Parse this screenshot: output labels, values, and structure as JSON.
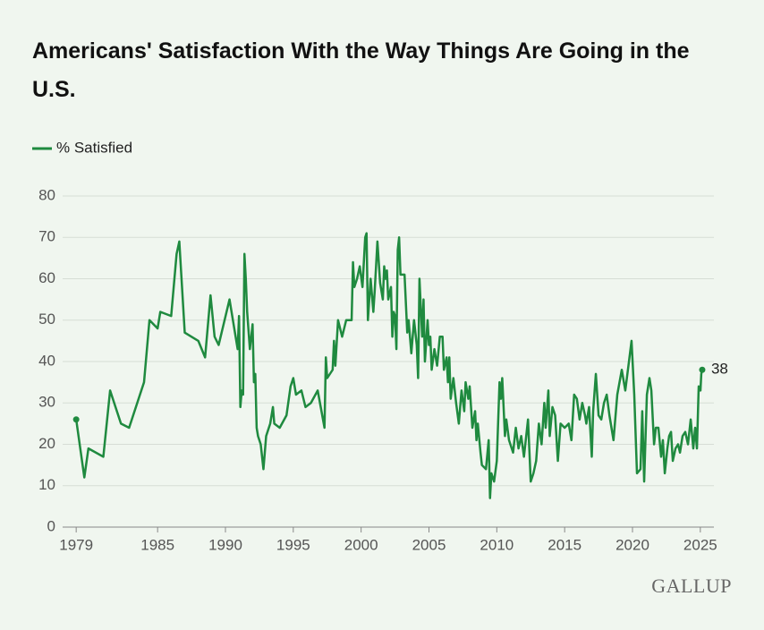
{
  "chart_data": {
    "type": "line",
    "title": "Americans' Satisfaction With the Way Things Are Going in the U.S.",
    "source": "GALLUP",
    "xlim": [
      1978,
      2026
    ],
    "xticks": [
      1979,
      1985,
      1990,
      1995,
      2000,
      2005,
      2010,
      2015,
      2020,
      2025
    ],
    "ylim": [
      0,
      80
    ],
    "yticks": [
      0,
      10,
      20,
      30,
      40,
      50,
      60,
      70,
      80
    ],
    "grid": true,
    "x": [
      1979.0,
      1979.6,
      1979.9,
      1981.0,
      1981.5,
      1982.3,
      1982.9,
      1984.0,
      1984.4,
      1985.0,
      1985.2,
      1986.0,
      1986.4,
      1986.6,
      1987.0,
      1988.0,
      1988.5,
      1988.9,
      1989.2,
      1989.5,
      1990.3,
      1990.9,
      1991.0,
      1991.1,
      1991.2,
      1991.3,
      1991.4,
      1991.5,
      1991.6,
      1991.8,
      1992.0,
      1992.1,
      1992.2,
      1992.3,
      1992.4,
      1992.6,
      1992.8,
      1993.0,
      1993.3,
      1993.5,
      1993.6,
      1994.0,
      1994.5,
      1994.8,
      1995.0,
      1995.2,
      1995.6,
      1995.9,
      1996.3,
      1996.8,
      1997.3,
      1997.4,
      1997.5,
      1997.9,
      1998.0,
      1998.1,
      1998.3,
      1998.6,
      1998.9,
      1999.3,
      1999.4,
      1999.5,
      1999.7,
      1999.9,
      2000.1,
      2000.3,
      2000.4,
      2000.5,
      2000.7,
      2000.9,
      2001.0,
      2001.2,
      2001.4,
      2001.6,
      2001.7,
      2001.8,
      2001.9,
      2002.0,
      2002.2,
      2002.3,
      2002.4,
      2002.5,
      2002.6,
      2002.7,
      2002.8,
      2002.9,
      2003.2,
      2003.4,
      2003.5,
      2003.7,
      2003.9,
      2004.1,
      2004.2,
      2004.3,
      2004.5,
      2004.6,
      2004.7,
      2004.9,
      2005.0,
      2005.1,
      2005.2,
      2005.4,
      2005.6,
      2005.8,
      2006.0,
      2006.1,
      2006.3,
      2006.4,
      2006.5,
      2006.6,
      2006.8,
      2007.0,
      2007.2,
      2007.4,
      2007.6,
      2007.7,
      2007.9,
      2008.0,
      2008.2,
      2008.4,
      2008.5,
      2008.6,
      2008.8,
      2008.9,
      2009.2,
      2009.4,
      2009.5,
      2009.6,
      2009.8,
      2010.0,
      2010.2,
      2010.3,
      2010.4,
      2010.6,
      2010.7,
      2010.9,
      2011.2,
      2011.4,
      2011.6,
      2011.8,
      2012.0,
      2012.3,
      2012.5,
      2012.7,
      2012.9,
      2013.1,
      2013.3,
      2013.5,
      2013.6,
      2013.8,
      2013.9,
      2014.1,
      2014.3,
      2014.5,
      2014.7,
      2015.0,
      2015.3,
      2015.5,
      2015.7,
      2015.9,
      2016.1,
      2016.3,
      2016.5,
      2016.6,
      2016.8,
      2017.0,
      2017.1,
      2017.3,
      2017.5,
      2017.7,
      2017.9,
      2018.1,
      2018.3,
      2018.6,
      2018.88,
      2019.21,
      2019.47,
      2019.74,
      2019.93,
      2020.13,
      2020.33,
      2020.59,
      2020.72,
      2020.86,
      2021.06,
      2021.25,
      2021.39,
      2021.59,
      2021.72,
      2021.91,
      2022.11,
      2022.24,
      2022.38,
      2022.57,
      2022.7,
      2022.84,
      2022.97,
      2023.17,
      2023.36,
      2023.5,
      2023.69,
      2023.89,
      2024.09,
      2024.29,
      2024.48,
      2024.62,
      2024.75,
      2024.88,
      2025.01,
      2025.07,
      2025.14
    ],
    "series": [
      {
        "name": "% Satisfied",
        "color": "#1f8a3f",
        "values": [
          26,
          12,
          19,
          17,
          33,
          25,
          24,
          35,
          50,
          48,
          52,
          51,
          66,
          69,
          47,
          45,
          41,
          56,
          46,
          44,
          55,
          43,
          51,
          29,
          33,
          32,
          66,
          60,
          52,
          43,
          49,
          35,
          37,
          24,
          22,
          20,
          14,
          22,
          25,
          29,
          25,
          24,
          27,
          34,
          36,
          32,
          33,
          29,
          30,
          33,
          24,
          41,
          36,
          38,
          45,
          39,
          50,
          46,
          50,
          50,
          64,
          58,
          60,
          63,
          58,
          70,
          71,
          50,
          60,
          52,
          57,
          69,
          59,
          55,
          63,
          60,
          62,
          55,
          58,
          46,
          52,
          51,
          43,
          67,
          70,
          61,
          61,
          47,
          50,
          42,
          50,
          44,
          36,
          60,
          46,
          55,
          40,
          50,
          44,
          46,
          38,
          43,
          39,
          46,
          46,
          38,
          41,
          35,
          41,
          31,
          36,
          30,
          25,
          33,
          28,
          35,
          31,
          34,
          24,
          28,
          21,
          25,
          18,
          15,
          14,
          21,
          7,
          13,
          11,
          16,
          35,
          31,
          36,
          22,
          26,
          21,
          18,
          24,
          19,
          22,
          17,
          26,
          11,
          13,
          16,
          25,
          20,
          30,
          24,
          33,
          22,
          29,
          27,
          16,
          25,
          24,
          25,
          21,
          32,
          31,
          26,
          30,
          27,
          25,
          29,
          17,
          28,
          37,
          27,
          26,
          30,
          32,
          27,
          21,
          32,
          38,
          33,
          40,
          45,
          32,
          13,
          14,
          28,
          11,
          32,
          36,
          33,
          20,
          24,
          24,
          17,
          21,
          13,
          19,
          22,
          23,
          16,
          19,
          20,
          18,
          22,
          23,
          20,
          26,
          19,
          24,
          19,
          34,
          33,
          37,
          38
        ]
      }
    ]
  }
}
